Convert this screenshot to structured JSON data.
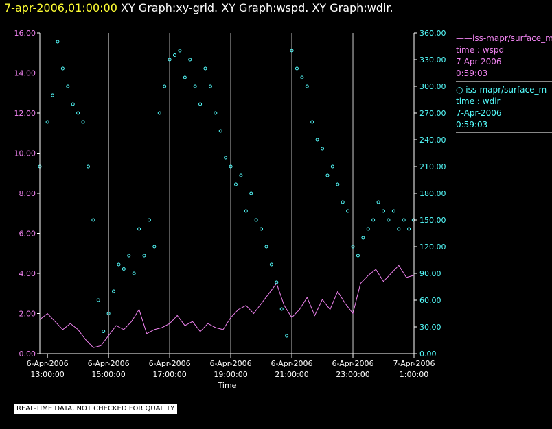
{
  "header": {
    "timestamp": "7-apr-2006,01:00:00",
    "graphs": "XY Graph:xy-grid.  XY Graph:wspd.  XY Graph:wdir."
  },
  "legend": {
    "wspd": {
      "line1": "——iss-mapr/surface_m",
      "line2": "time : wspd",
      "line3": "7-Apr-2006",
      "line4": "0:59:03"
    },
    "wdir": {
      "line1": "iss-mapr/surface_m",
      "line2": "time : wdir",
      "line3": "7-Apr-2006",
      "line4": "0:59:03"
    }
  },
  "disclaimer": "REAL-TIME DATA, NOT CHECKED FOR QUALITY",
  "colors": {
    "wspd": "#ee82ee",
    "wdir": "#55ffff",
    "grid": "#cccccc",
    "axes": "#ffffff"
  },
  "chart_data": {
    "type": "line",
    "xlabel": "Time",
    "xlim": [
      "2006-04-06T12:45:00",
      "2006-04-07T01:00:00"
    ],
    "x_ticks": [
      {
        "t": "2006-04-06T13:00:00",
        "l1": "6-Apr-2006",
        "l2": "13:00:00"
      },
      {
        "t": "2006-04-06T15:00:00",
        "l1": "6-Apr-2006",
        "l2": "15:00:00"
      },
      {
        "t": "2006-04-06T17:00:00",
        "l1": "6-Apr-2006",
        "l2": "17:00:00"
      },
      {
        "t": "2006-04-06T19:00:00",
        "l1": "6-Apr-2006",
        "l2": "19:00:00"
      },
      {
        "t": "2006-04-06T21:00:00",
        "l1": "6-Apr-2006",
        "l2": "21:00:00"
      },
      {
        "t": "2006-04-06T23:00:00",
        "l1": "6-Apr-2006",
        "l2": "23:00:00"
      },
      {
        "t": "2006-04-07T01:00:00",
        "l1": "7-Apr-2006",
        "l2": "1:00:00"
      }
    ],
    "y_left": {
      "min": 0,
      "max": 16,
      "ticks": [
        "0.00",
        "2.00",
        "4.00",
        "6.00",
        "8.00",
        "10.00",
        "12.00",
        "14.00",
        "16.00"
      ]
    },
    "y_right": {
      "min": 0,
      "max": 360,
      "ticks": [
        "0.00",
        "30.00",
        "60.00",
        "90.00",
        "120.00",
        "150.00",
        "180.00",
        "210.00",
        "240.00",
        "270.00",
        "300.00",
        "330.00",
        "360.00"
      ]
    },
    "grid": "vertical",
    "series": [
      {
        "name": "iss-mapr/surface_m time : wspd",
        "axis": "left",
        "style": "line",
        "x": [
          "2006-04-06T12:45:00",
          "2006-04-06T13:00:00",
          "2006-04-06T13:15:00",
          "2006-04-06T13:30:00",
          "2006-04-06T13:45:00",
          "2006-04-06T14:00:00",
          "2006-04-06T14:15:00",
          "2006-04-06T14:30:00",
          "2006-04-06T14:45:00",
          "2006-04-06T15:00:00",
          "2006-04-06T15:15:00",
          "2006-04-06T15:30:00",
          "2006-04-06T15:45:00",
          "2006-04-06T16:00:00",
          "2006-04-06T16:15:00",
          "2006-04-06T16:30:00",
          "2006-04-06T16:45:00",
          "2006-04-06T17:00:00",
          "2006-04-06T17:15:00",
          "2006-04-06T17:30:00",
          "2006-04-06T17:45:00",
          "2006-04-06T18:00:00",
          "2006-04-06T18:15:00",
          "2006-04-06T18:30:00",
          "2006-04-06T18:45:00",
          "2006-04-06T19:00:00",
          "2006-04-06T19:15:00",
          "2006-04-06T19:30:00",
          "2006-04-06T19:45:00",
          "2006-04-06T20:00:00",
          "2006-04-06T20:15:00",
          "2006-04-06T20:30:00",
          "2006-04-06T20:45:00",
          "2006-04-06T21:00:00",
          "2006-04-06T21:15:00",
          "2006-04-06T21:30:00",
          "2006-04-06T21:45:00",
          "2006-04-06T22:00:00",
          "2006-04-06T22:15:00",
          "2006-04-06T22:30:00",
          "2006-04-06T22:45:00",
          "2006-04-06T23:00:00",
          "2006-04-06T23:15:00",
          "2006-04-06T23:30:00",
          "2006-04-06T23:45:00",
          "2006-04-07T00:00:00",
          "2006-04-07T00:15:00",
          "2006-04-07T00:30:00",
          "2006-04-07T00:45:00",
          "2006-04-07T00:59:03"
        ],
        "values": [
          1.7,
          2.0,
          1.6,
          1.2,
          1.5,
          1.2,
          0.7,
          0.3,
          0.4,
          0.9,
          1.4,
          1.2,
          1.6,
          2.2,
          1.0,
          1.2,
          1.3,
          1.5,
          1.9,
          1.4,
          1.6,
          1.1,
          1.5,
          1.3,
          1.2,
          1.8,
          2.2,
          2.4,
          2.0,
          2.5,
          3.0,
          3.5,
          2.4,
          1.8,
          2.2,
          2.8,
          1.9,
          2.7,
          2.2,
          3.1,
          2.5,
          2.0,
          3.5,
          3.9,
          4.2,
          3.6,
          4.0,
          4.4,
          3.8,
          3.9
        ]
      },
      {
        "name": "iss-mapr/surface_m time : wdir",
        "axis": "right",
        "style": "scatter",
        "x": [
          "2006-04-06T12:45:00",
          "2006-04-06T13:00:00",
          "2006-04-06T13:10:00",
          "2006-04-06T13:20:00",
          "2006-04-06T13:30:00",
          "2006-04-06T13:40:00",
          "2006-04-06T13:50:00",
          "2006-04-06T14:00:00",
          "2006-04-06T14:10:00",
          "2006-04-06T14:20:00",
          "2006-04-06T14:30:00",
          "2006-04-06T14:40:00",
          "2006-04-06T14:50:00",
          "2006-04-06T15:00:00",
          "2006-04-06T15:10:00",
          "2006-04-06T15:20:00",
          "2006-04-06T15:30:00",
          "2006-04-06T15:40:00",
          "2006-04-06T15:50:00",
          "2006-04-06T16:00:00",
          "2006-04-06T16:10:00",
          "2006-04-06T16:20:00",
          "2006-04-06T16:30:00",
          "2006-04-06T16:40:00",
          "2006-04-06T16:50:00",
          "2006-04-06T17:00:00",
          "2006-04-06T17:10:00",
          "2006-04-06T17:20:00",
          "2006-04-06T17:30:00",
          "2006-04-06T17:40:00",
          "2006-04-06T17:50:00",
          "2006-04-06T18:00:00",
          "2006-04-06T18:10:00",
          "2006-04-06T18:20:00",
          "2006-04-06T18:30:00",
          "2006-04-06T18:40:00",
          "2006-04-06T18:50:00",
          "2006-04-06T19:00:00",
          "2006-04-06T19:10:00",
          "2006-04-06T19:20:00",
          "2006-04-06T19:30:00",
          "2006-04-06T19:40:00",
          "2006-04-06T19:50:00",
          "2006-04-06T20:00:00",
          "2006-04-06T20:10:00",
          "2006-04-06T20:20:00",
          "2006-04-06T20:30:00",
          "2006-04-06T20:40:00",
          "2006-04-06T20:50:00",
          "2006-04-06T21:00:00",
          "2006-04-06T21:10:00",
          "2006-04-06T21:20:00",
          "2006-04-06T21:30:00",
          "2006-04-06T21:40:00",
          "2006-04-06T21:50:00",
          "2006-04-06T22:00:00",
          "2006-04-06T22:10:00",
          "2006-04-06T22:20:00",
          "2006-04-06T22:30:00",
          "2006-04-06T22:40:00",
          "2006-04-06T22:50:00",
          "2006-04-06T23:00:00",
          "2006-04-06T23:10:00",
          "2006-04-06T23:20:00",
          "2006-04-06T23:30:00",
          "2006-04-06T23:40:00",
          "2006-04-06T23:50:00",
          "2006-04-07T00:00:00",
          "2006-04-07T00:10:00",
          "2006-04-07T00:20:00",
          "2006-04-07T00:30:00",
          "2006-04-07T00:40:00",
          "2006-04-07T00:50:00",
          "2006-04-07T00:59:03"
        ],
        "values": [
          210,
          260,
          290,
          350,
          320,
          300,
          280,
          270,
          260,
          210,
          150,
          60,
          25,
          45,
          70,
          100,
          95,
          110,
          90,
          140,
          110,
          150,
          120,
          270,
          300,
          330,
          335,
          340,
          310,
          330,
          300,
          280,
          320,
          300,
          270,
          250,
          220,
          210,
          190,
          200,
          160,
          180,
          150,
          140,
          120,
          100,
          80,
          50,
          20,
          340,
          320,
          310,
          300,
          260,
          240,
          230,
          200,
          210,
          190,
          170,
          160,
          120,
          110,
          130,
          140,
          150,
          170,
          160,
          150,
          160,
          140,
          150,
          140,
          150
        ]
      }
    ]
  }
}
